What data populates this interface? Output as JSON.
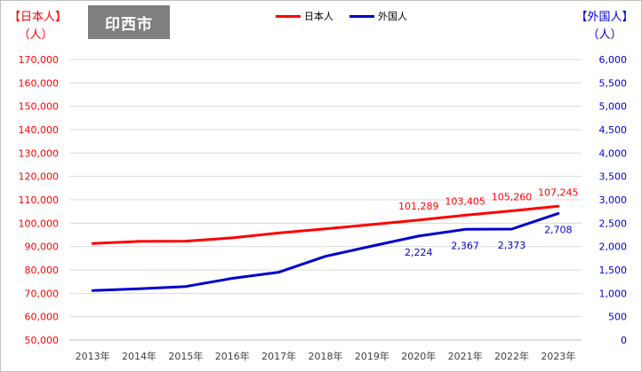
{
  "title": "印西市",
  "left_unit": [
    "【日本人】",
    "（人）"
  ],
  "right_unit": [
    "【外国人】",
    "（人）"
  ],
  "legend": [
    {
      "label": "日本人",
      "color": "#ff0000"
    },
    {
      "label": "外国人",
      "color": "#0000cc"
    }
  ],
  "colors": {
    "japanese": "#ff0000",
    "foreign": "#0000cc",
    "grid": "#d9d9d9",
    "axis_text": "#404040"
  },
  "chart_data": {
    "type": "line",
    "x": [
      "2013年",
      "2014年",
      "2015年",
      "2016年",
      "2017年",
      "2018年",
      "2019年",
      "2020年",
      "2021年",
      "2022年",
      "2023年"
    ],
    "series": [
      {
        "name": "日本人",
        "axis": "left",
        "values": [
          91300,
          92200,
          92300,
          93700,
          95800,
          97600,
          99400,
          101289,
          103405,
          105260,
          107245
        ],
        "labels": [
          "",
          "",
          "",
          "",
          "",
          "",
          "",
          "101,289",
          "103,405",
          "105,260",
          "107,245"
        ]
      },
      {
        "name": "外国人",
        "axis": "right",
        "values": [
          1060,
          1095,
          1145,
          1320,
          1450,
          1790,
          2010,
          2224,
          2367,
          2373,
          2708
        ],
        "labels": [
          "",
          "",
          "",
          "",
          "",
          "",
          "",
          "2,224",
          "2,367",
          "2,373",
          "2,708"
        ]
      }
    ],
    "y_left": {
      "range": [
        50000,
        170000
      ],
      "ticks": [
        "50,000",
        "60,000",
        "70,000",
        "80,000",
        "90,000",
        "100,000",
        "110,000",
        "120,000",
        "130,000",
        "140,000",
        "150,000",
        "160,000",
        "170,000"
      ]
    },
    "y_right": {
      "range": [
        0,
        6000
      ],
      "ticks": [
        "0",
        "500",
        "1,000",
        "1,500",
        "2,000",
        "2,500",
        "3,000",
        "3,500",
        "4,000",
        "4,500",
        "5,000",
        "5,500",
        "6,000"
      ]
    },
    "grid": true,
    "legend_position": "top-center"
  }
}
